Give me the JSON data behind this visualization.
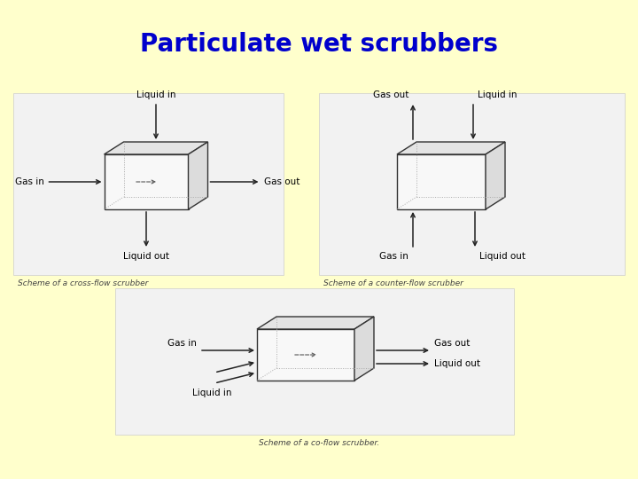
{
  "title": "Particulate wet scrubbers",
  "title_color": "#0000cc",
  "title_fontsize": 20,
  "bg_color": "#ffffcc",
  "panel_bg": "#f2f2f2",
  "caption1": "Scheme of a cross-flow scrubber",
  "caption2": "Scheme of a counter-flow scrubber",
  "caption3": "Scheme of a co-flow scrubber.",
  "caption_fontsize": 6.5,
  "label_fontsize": 7.5,
  "box_edge": "#333333",
  "dashed_color": "#aaaaaa",
  "panel_edge": "#cccccc"
}
